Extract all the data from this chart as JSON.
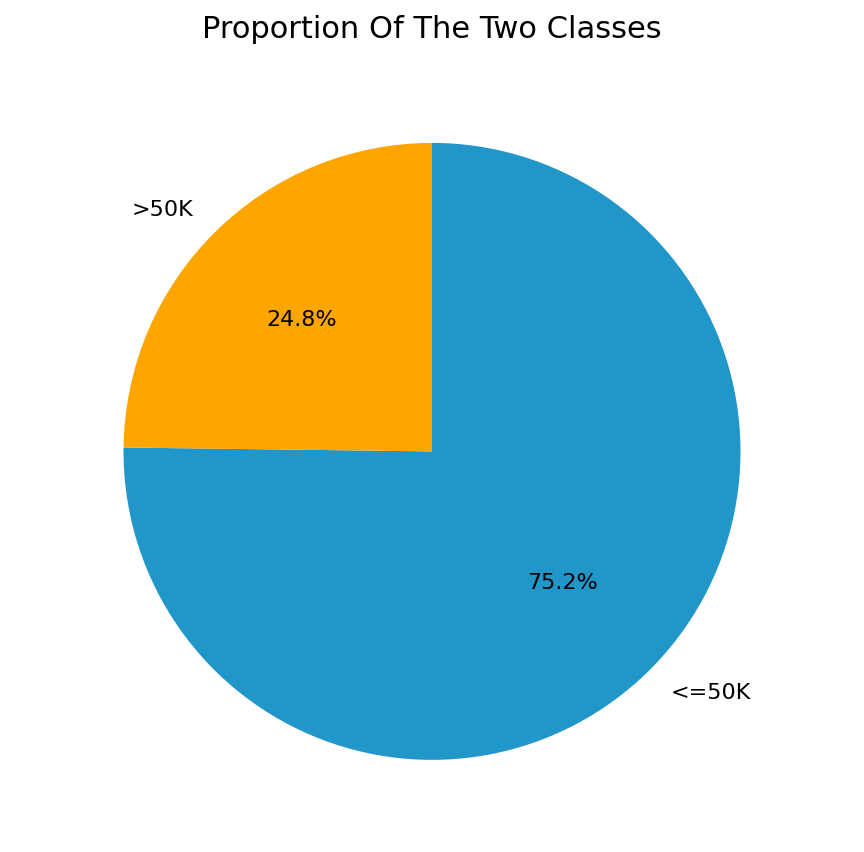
{
  "title": "Proportion Of The Two Classes",
  "labels": [
    "<=50K",
    ">50K"
  ],
  "values": [
    75.2,
    24.8
  ],
  "colors": [
    "#2196C9",
    "#FFA500"
  ],
  "startangle": 90,
  "counterclock": false,
  "title_fontsize": 22,
  "label_fontsize": 16,
  "autopct_fontsize": 16,
  "background_color": "#ffffff"
}
